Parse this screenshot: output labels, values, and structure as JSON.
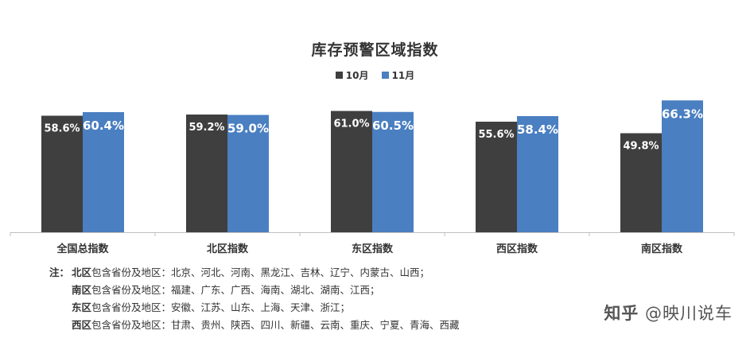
{
  "chart_data": {
    "type": "bar",
    "title": "库存预警区域指数",
    "categories": [
      "全国总指数",
      "北区指数",
      "东区指数",
      "西区指数",
      "南区指数"
    ],
    "series": [
      {
        "name": "10月",
        "color": "#3f3f3f",
        "values": [
          58.6,
          59.2,
          61.0,
          55.6,
          49.8
        ],
        "labels": [
          "58.6%",
          "59.2%",
          "61.0%",
          "55.6%",
          "49.8%"
        ]
      },
      {
        "name": "11月",
        "color": "#4a7fc1",
        "values": [
          60.4,
          59.0,
          60.5,
          58.4,
          66.3
        ],
        "labels": [
          "60.4%",
          "59.0%",
          "60.5%",
          "58.4%",
          "66.3%"
        ]
      }
    ],
    "ylim": [
      0,
      70
    ],
    "grid": false,
    "legend": "top-center"
  },
  "notes": {
    "prefix": "注：",
    "rows": [
      {
        "region": "北区",
        "text": "包含省份及地区：北京、河北、河南、黑龙江、吉林、辽宁、内蒙古、山西；"
      },
      {
        "region": "南区",
        "text": "包含省份及地区：福建、广东、广西、海南、湖北、湖南、江西；"
      },
      {
        "region": "东区",
        "text": "包含省份及地区：安徽、江苏、山东、上海、天津、浙江；"
      },
      {
        "region": "西区",
        "text": "包含省份及地区：甘肃、贵州、陕西、四川、新疆、云南、重庆、宁夏、青海、西藏"
      }
    ]
  },
  "watermark": {
    "site": "知乎",
    "author": "@映川说车"
  }
}
